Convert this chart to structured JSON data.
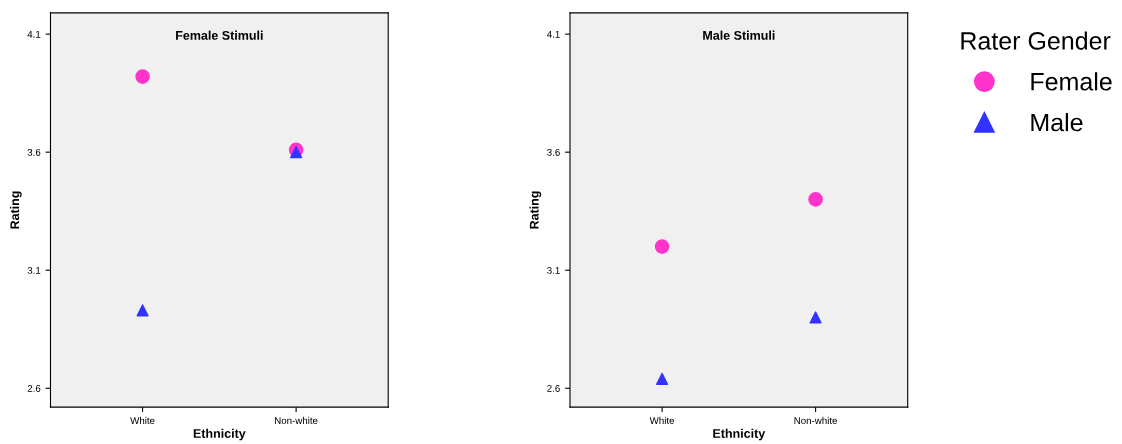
{
  "chart_data": [
    {
      "type": "scatter",
      "title": "Female Stimuli",
      "xlabel": "Ethnicity",
      "ylabel": "Rating",
      "categories": [
        "White",
        "Non-white"
      ],
      "ylim": [
        2.52,
        4.19
      ],
      "yticks": [
        2.6,
        3.1,
        3.6,
        4.1
      ],
      "grid": false,
      "legend": "right",
      "legend_title": "Rater Gender",
      "series": [
        {
          "name": "Female",
          "color": "#ff33cc",
          "marker": "circle",
          "values": [
            3.92,
            3.61
          ]
        },
        {
          "name": "Male",
          "color": "#3333ff",
          "marker": "triangle",
          "values": [
            2.93,
            3.6
          ]
        }
      ]
    },
    {
      "type": "scatter",
      "title": "Male Stimuli",
      "xlabel": "Ethnicity",
      "ylabel": "Rating",
      "categories": [
        "White",
        "Non-white"
      ],
      "ylim": [
        2.52,
        4.19
      ],
      "yticks": [
        2.6,
        3.1,
        3.6,
        4.1
      ],
      "grid": false,
      "series": [
        {
          "color": "#ff33cc",
          "marker": "circle",
          "values": [
            3.2,
            3.4
          ]
        },
        {
          "color": "#3333ff",
          "marker": "triangle",
          "values": [
            2.64,
            2.9
          ]
        }
      ]
    }
  ]
}
